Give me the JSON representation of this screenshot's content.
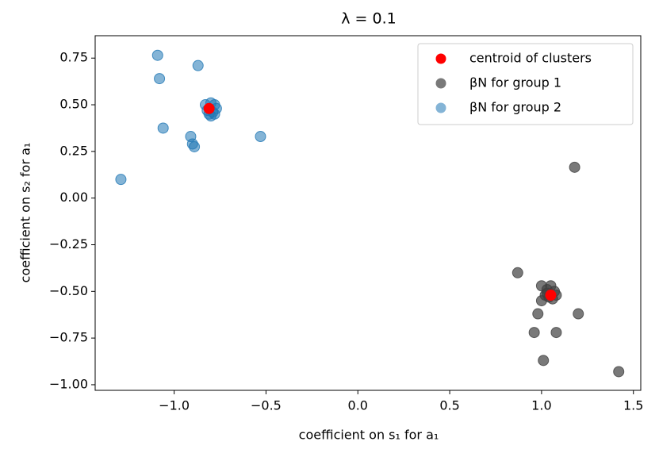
{
  "chart_data": {
    "type": "scatter",
    "title": "λ = 0.1",
    "xlabel": "coefficient on s₁ for a₁",
    "ylabel": "coefficient on s₂ for a₁",
    "xlim": [
      -1.43,
      1.54
    ],
    "ylim": [
      -1.03,
      0.87
    ],
    "xticks": [
      {
        "value": -1.0,
        "label": "−1.0"
      },
      {
        "value": -0.5,
        "label": "−0.5"
      },
      {
        "value": 0.0,
        "label": "0.0"
      },
      {
        "value": 0.5,
        "label": "0.5"
      },
      {
        "value": 1.0,
        "label": "1.0"
      },
      {
        "value": 1.5,
        "label": "1.5"
      }
    ],
    "yticks": [
      {
        "value": -1.0,
        "label": "−1.00"
      },
      {
        "value": -0.75,
        "label": "−0.75"
      },
      {
        "value": -0.5,
        "label": "−0.50"
      },
      {
        "value": -0.25,
        "label": "−0.25"
      },
      {
        "value": 0.0,
        "label": "0.00"
      },
      {
        "value": 0.25,
        "label": "0.25"
      },
      {
        "value": 0.5,
        "label": "0.50"
      },
      {
        "value": 0.75,
        "label": "0.75"
      }
    ],
    "legend": "upper right",
    "series": [
      {
        "name": "βN for group 1",
        "color": "#404040",
        "x": [
          1.18,
          0.87,
          1.0,
          1.03,
          1.05,
          1.07,
          1.02,
          1.04,
          1.06,
          1.08,
          1.03,
          1.0,
          0.98,
          1.2,
          0.96,
          1.08,
          1.01,
          1.42
        ],
        "values": [
          0.165,
          -0.4,
          -0.47,
          -0.49,
          -0.47,
          -0.5,
          -0.52,
          -0.53,
          -0.54,
          -0.52,
          -0.51,
          -0.55,
          -0.62,
          -0.62,
          -0.72,
          -0.72,
          -0.87,
          -0.93
        ]
      },
      {
        "name": "βN for group 2",
        "color": "#1f77b4",
        "x": [
          -1.09,
          -0.87,
          -1.08,
          -0.83,
          -0.8,
          -0.78,
          -0.77,
          -0.82,
          -0.79,
          -0.81,
          -0.8,
          -0.78,
          -1.06,
          -0.91,
          -0.9,
          -0.89,
          -0.53,
          -1.29
        ],
        "values": [
          0.765,
          0.71,
          0.64,
          0.5,
          0.51,
          0.5,
          0.48,
          0.47,
          0.46,
          0.45,
          0.44,
          0.45,
          0.375,
          0.33,
          0.29,
          0.275,
          0.33,
          0.1
        ]
      },
      {
        "name": "centroid of clusters",
        "color": "#ff0000",
        "x": [
          -0.81,
          1.05
        ],
        "values": [
          0.48,
          -0.52
        ]
      }
    ]
  }
}
